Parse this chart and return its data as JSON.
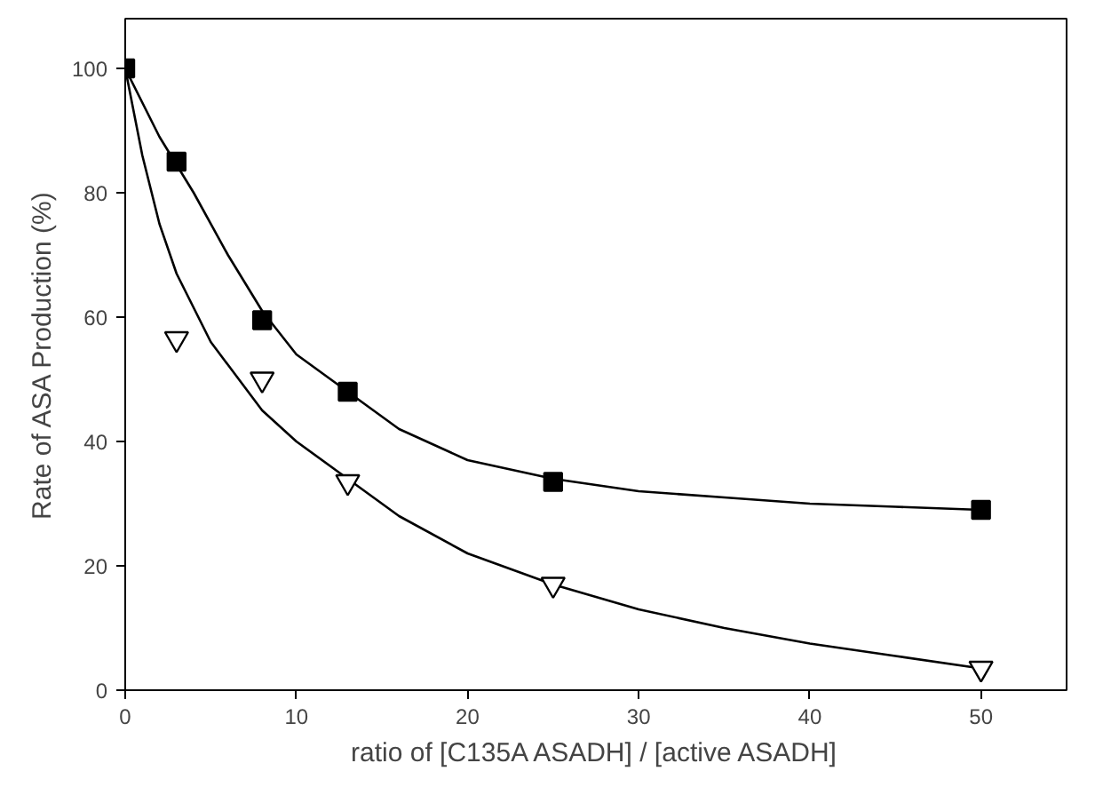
{
  "chart_data": {
    "type": "scatter",
    "xlabel": "ratio of [C135A ASADH] / [active ASADH]",
    "ylabel": "Rate of ASA Production (%)",
    "xlim": [
      0,
      55
    ],
    "ylim": [
      0,
      108
    ],
    "xticks": [
      0,
      10,
      20,
      30,
      40,
      50
    ],
    "yticks": [
      0,
      20,
      40,
      60,
      80,
      100
    ],
    "grid": false,
    "series": [
      {
        "marker": "square",
        "color": "#000000",
        "x": [
          0,
          3,
          8,
          13,
          25,
          50
        ],
        "values": [
          100,
          85,
          59.5,
          48,
          33.5,
          29
        ]
      },
      {
        "marker": "triangle",
        "color": "#000000",
        "x": [
          3,
          8,
          13,
          25,
          50
        ],
        "values": [
          56.5,
          50,
          33.5,
          17,
          3.5
        ]
      },
      {
        "type": "line",
        "marker": "none",
        "color": "#000000",
        "x": [
          0,
          2,
          4,
          6,
          8,
          10,
          13,
          16,
          20,
          25,
          30,
          35,
          40,
          45,
          50
        ],
        "values": [
          100,
          89,
          80,
          70,
          61,
          54,
          48,
          42,
          37,
          34,
          32,
          31,
          30,
          29.5,
          29
        ]
      },
      {
        "type": "line",
        "marker": "none",
        "color": "#000000",
        "x": [
          0,
          1,
          2,
          3,
          5,
          8,
          10,
          13,
          16,
          20,
          25,
          30,
          35,
          40,
          45,
          50
        ],
        "values": [
          100,
          86,
          75,
          67,
          56,
          45,
          40,
          34,
          28,
          22,
          17,
          13,
          10,
          7.5,
          5.5,
          3.5
        ]
      }
    ]
  }
}
